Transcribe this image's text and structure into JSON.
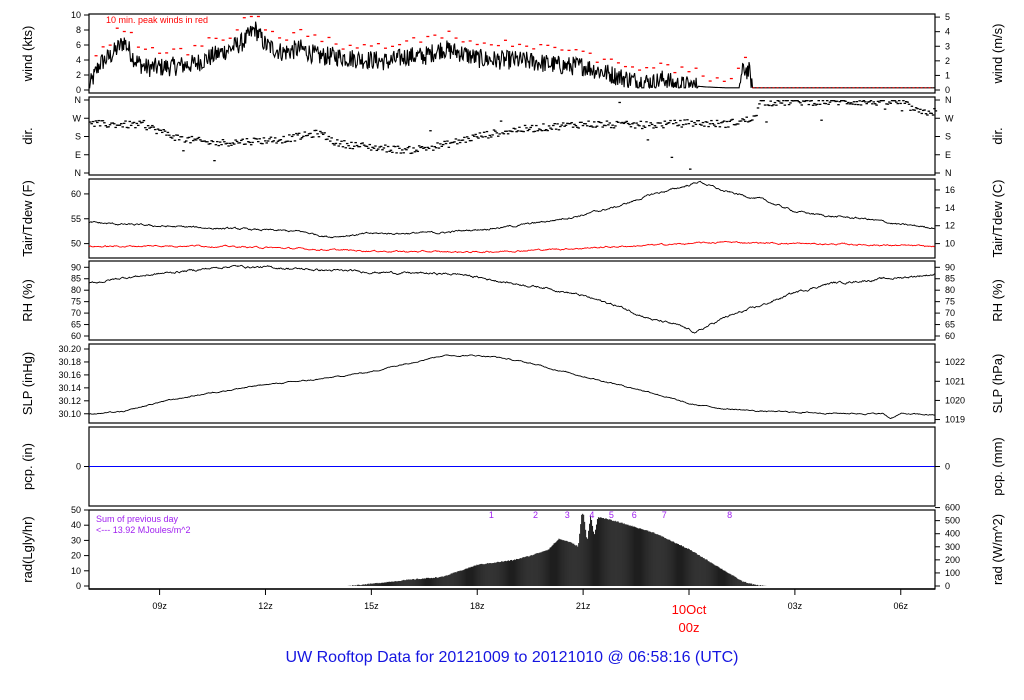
{
  "title": "UW Rooftop Data for 20121009  to  20121010 @ 06:58:16  (UTC)",
  "colors": {
    "line": "#000000",
    "peak": "#ff0000",
    "dew": "#ff0000",
    "pcp": "#0000ff",
    "annot": "#a020f0",
    "date": "#ff0000",
    "title": "#1515e0"
  },
  "chart_data": {
    "type": "line",
    "title": "UW Rooftop Data for 20121009  to  20121010 @ 06:58:16  (UTC)",
    "x_units": "hours since 2012-10-09 00z",
    "xlim": [
      7.0,
      30.97
    ],
    "x_ticks": [
      {
        "t": 9,
        "label": "09z"
      },
      {
        "t": 12,
        "label": "12z"
      },
      {
        "t": 15,
        "label": "15z"
      },
      {
        "t": 18,
        "label": "18z"
      },
      {
        "t": 21,
        "label": "21z"
      },
      {
        "t": 24,
        "label": "00z",
        "date": "10Oct"
      },
      {
        "t": 27,
        "label": "03z"
      },
      {
        "t": 30,
        "label": "06z"
      }
    ],
    "panels": [
      {
        "id": "wind",
        "ylabel_left": "wind (kts)",
        "ylabel_right": "wind (m/s)",
        "ylim": [
          0,
          10
        ],
        "left_ticks": [
          0,
          2,
          4,
          6,
          8,
          10
        ],
        "right_ticks": [
          0,
          1,
          2,
          3,
          4,
          5
        ],
        "right_factor": 1.944,
        "right_offset": 0,
        "annotation": "10 min. peak winds in red",
        "series": [
          {
            "name": "wind",
            "style": "noisy",
            "noise": 1.3,
            "t": [
              7.0,
              7.3,
              7.6,
              8.0,
              8.3,
              8.6,
              9.0,
              9.5,
              10.0,
              10.5,
              11.0,
              11.4,
              11.7,
              12.0,
              12.5,
              13.0,
              13.5,
              14.0,
              14.5,
              15.0,
              15.5,
              16.0,
              16.5,
              17.0,
              17.5,
              18.0,
              18.5,
              19.0,
              19.5,
              20.0,
              20.5,
              21.0,
              21.5,
              22.0,
              22.5,
              23.0,
              23.3,
              23.6,
              24.0,
              24.5,
              25.0,
              25.4,
              25.55,
              25.7,
              25.8,
              31.0
            ],
            "v": [
              0.3,
              3.5,
              4.5,
              6.5,
              4.0,
              3.0,
              3.0,
              3.2,
              3.5,
              4.5,
              5.5,
              6.5,
              8.2,
              6.0,
              5.0,
              5.5,
              4.5,
              4.5,
              4.2,
              4.0,
              3.8,
              4.5,
              4.5,
              5.5,
              5.0,
              4.2,
              4.0,
              4.0,
              3.8,
              3.5,
              3.2,
              3.2,
              2.5,
              1.8,
              1.2,
              1.0,
              1.5,
              0.7,
              0.6,
              0.4,
              0.3,
              0.3,
              2.8,
              2.5,
              0.3,
              0.3
            ]
          },
          {
            "name": "10 min peak",
            "style": "dash",
            "offset": 1.8,
            "from": 7.2,
            "to": 25.7,
            "step": 0.2
          }
        ]
      },
      {
        "id": "dir",
        "ylabel_left": "dir.",
        "ylabel_right": "dir.",
        "ylim": [
          0,
          360
        ],
        "left_ticks": [
          {
            "v": 0,
            "label": "N"
          },
          {
            "v": 90,
            "label": "E"
          },
          {
            "v": 180,
            "label": "S"
          },
          {
            "v": 270,
            "label": "W"
          },
          {
            "v": 360,
            "label": "N"
          }
        ],
        "right_ticks": [
          {
            "v": 0,
            "label": "N"
          },
          {
            "v": 90,
            "label": "E"
          },
          {
            "v": 180,
            "label": "S"
          },
          {
            "v": 270,
            "label": "W"
          },
          {
            "v": 360,
            "label": "N"
          }
        ],
        "series": [
          {
            "name": "direction",
            "style": "points",
            "noise": 18,
            "t": [
              7.0,
              8.5,
              9.5,
              10.5,
              11.5,
              12.5,
              13.5,
              14.0,
              15.0,
              16.0,
              17.0,
              18.0,
              19.0,
              20.0,
              21.0,
              22.0,
              23.0,
              24.0,
              25.0,
              25.8,
              26.0,
              27.0,
              28.5,
              30.0,
              30.5,
              30.97
            ],
            "v": [
              245,
              240,
              175,
              150,
              160,
              170,
              200,
              150,
              130,
              115,
              140,
              185,
              215,
              230,
              245,
              240,
              240,
              250,
              245,
              270,
              350,
              355,
              355,
              352,
              300,
              305
            ]
          }
        ]
      },
      {
        "id": "temp",
        "ylabel_left": "Tair/Tdew (F)",
        "ylabel_right": "Tair/Tdew (C)",
        "ylim": [
          46.5,
          63
        ],
        "left_ticks": [
          50,
          55,
          60
        ],
        "right_ticks": [
          10,
          12,
          14,
          16
        ],
        "right_factor": 1.8,
        "right_offset": 32,
        "series": [
          {
            "name": "Tair",
            "style": "line",
            "noise": 0.25,
            "color": "line",
            "t": [
              7.0,
              9.0,
              11.0,
              13.0,
              13.8,
              15.0,
              17.0,
              19.0,
              20.0,
              21.0,
              22.0,
              23.0,
              23.6,
              24.0,
              24.3,
              25.0,
              26.0,
              27.0,
              28.0,
              29.0,
              30.0,
              30.97
            ],
            "v": [
              54.2,
              53.5,
              53.0,
              52.4,
              51.4,
              52.0,
              52.2,
              53.5,
              54.5,
              55.8,
              57.5,
              60.0,
              61.0,
              61.8,
              62.5,
              60.5,
              59.0,
              56.5,
              55.5,
              55.0,
              53.8,
              53.2
            ]
          },
          {
            "name": "Tdew",
            "style": "line",
            "noise": 0.2,
            "color": "dew",
            "t": [
              7.0,
              10.0,
              12.0,
              14.0,
              16.0,
              18.0,
              20.0,
              22.0,
              24.0,
              25.0,
              27.0,
              29.0,
              30.97
            ],
            "v": [
              49.4,
              49.6,
              49.2,
              48.7,
              48.4,
              48.3,
              48.8,
              49.4,
              50.0,
              50.3,
              50.0,
              49.8,
              49.4
            ]
          }
        ]
      },
      {
        "id": "rh",
        "ylabel_left": "RH (%)",
        "ylabel_right": "RH (%)",
        "ylim": [
          60,
          91
        ],
        "left_ticks": [
          60,
          65,
          70,
          75,
          80,
          85,
          90
        ],
        "right_ticks": [
          60,
          65,
          70,
          75,
          80,
          85,
          90
        ],
        "right_factor": 1,
        "right_offset": 0,
        "series": [
          {
            "name": "RH",
            "style": "line",
            "noise": 0.6,
            "t": [
              7.0,
              8.0,
              9.5,
              11.0,
              12.0,
              14.0,
              16.0,
              17.5,
              19.0,
              20.0,
              21.0,
              22.0,
              23.0,
              23.6,
              24.2,
              24.5,
              25.0,
              26.0,
              27.0,
              28.0,
              30.0,
              30.97
            ],
            "v": [
              82.8,
              85.5,
              88,
              90.5,
              90,
              88.5,
              87.5,
              87,
              83,
              81,
              77.5,
              73,
              67,
              65,
              61.5,
              64,
              68,
              73,
              79,
              83,
              85.5,
              87
            ]
          }
        ]
      },
      {
        "id": "slp",
        "ylabel_left": "SLP (inHg)",
        "ylabel_right": "SLP (hPa)",
        "ylim": [
          30.095,
          30.2
        ],
        "left_ticks": [
          {
            "v": 30.1,
            "label": "30.10"
          },
          {
            "v": 30.12,
            "label": "30.12"
          },
          {
            "v": 30.14,
            "label": "30.14"
          },
          {
            "v": 30.16,
            "label": "30.16"
          },
          {
            "v": 30.18,
            "label": "30.18"
          },
          {
            "v": 30.2,
            "label": "30.20"
          }
        ],
        "right_ticks": [
          1019,
          1020,
          1021,
          1022
        ],
        "right_factor": 0.02953,
        "right_offset": 0,
        "series": [
          {
            "name": "SLP",
            "style": "line",
            "noise": 0.0012,
            "t": [
              7.0,
              8.0,
              9.0,
              10.5,
              12.0,
              13.5,
              15.0,
              16.0,
              17.0,
              18.0,
              18.5,
              19.5,
              21.0,
              22.0,
              23.0,
              24.0,
              25.0,
              26.0,
              28.0,
              29.5,
              29.7,
              30.0,
              30.97
            ],
            "v": [
              30.1,
              30.103,
              30.118,
              30.133,
              30.145,
              30.153,
              30.165,
              30.178,
              30.19,
              30.19,
              30.188,
              30.178,
              30.158,
              30.145,
              30.132,
              30.115,
              30.108,
              30.104,
              30.101,
              30.1,
              30.093,
              30.1,
              30.098
            ]
          }
        ]
      },
      {
        "id": "pcp",
        "ylabel_left": "pcp. (in)",
        "ylabel_right": "pcp. (mm)",
        "ylim": [
          -1,
          1
        ],
        "left_ticks": [
          0
        ],
        "right_ticks": [
          0
        ],
        "right_factor": 1,
        "right_offset": 0,
        "series": [
          {
            "name": "precip",
            "style": "line",
            "noise": 0,
            "color": "pcp",
            "t": [
              7.0,
              30.97
            ],
            "v": [
              0,
              0
            ]
          }
        ]
      },
      {
        "id": "rad",
        "ylabel_left": "rad(Lgly/hr)",
        "ylabel_right": "rad (W/m^2)",
        "ylim": [
          0,
          50
        ],
        "left_ticks": [
          0,
          10,
          20,
          30,
          40,
          50
        ],
        "right_ticks": [
          0,
          100,
          200,
          300,
          400,
          500,
          600
        ],
        "right_factor": 0.086,
        "right_offset": 0,
        "annotation_lines": [
          "Sum of previous day",
          "<--- 13.92 MJoules/m^2"
        ],
        "hour_marks": [
          {
            "t": 18.4,
            "label": "1"
          },
          {
            "t": 19.65,
            "label": "2"
          },
          {
            "t": 20.55,
            "label": "3"
          },
          {
            "t": 21.25,
            "label": "4"
          },
          {
            "t": 21.8,
            "label": "5"
          },
          {
            "t": 22.45,
            "label": "6"
          },
          {
            "t": 23.3,
            "label": "7"
          },
          {
            "t": 25.15,
            "label": "8"
          }
        ],
        "series": [
          {
            "name": "radiation",
            "style": "bars",
            "noise": 0.6,
            "t": [
              7.0,
              14.3,
              15.0,
              16.0,
              17.0,
              17.5,
              18.0,
              19.0,
              19.5,
              20.0,
              20.3,
              20.6,
              20.85,
              20.95,
              21.0,
              21.1,
              21.2,
              21.3,
              21.4,
              21.5,
              22.0,
              23.0,
              24.0,
              24.5,
              25.0,
              25.5,
              25.9,
              26.2,
              30.97
            ],
            "v": [
              0,
              0,
              1.5,
              4,
              6,
              10,
              14,
              17,
              20,
              24,
              31,
              29,
              26,
              48,
              47,
              29,
              47,
              33,
              45,
              45,
              42,
              35,
              24,
              17,
              10,
              3,
              0.5,
              0,
              0
            ]
          }
        ]
      }
    ]
  }
}
